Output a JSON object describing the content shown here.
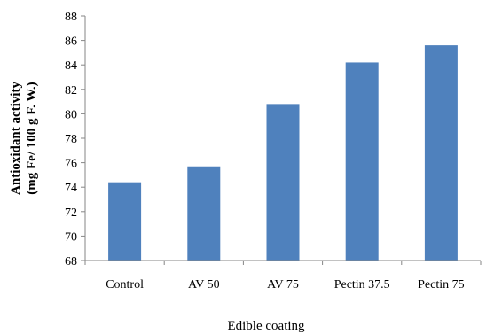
{
  "chart_data": {
    "type": "bar",
    "categories": [
      "Control",
      "AV 50",
      "AV 75",
      "Pectin 37.5",
      "Pectin 75"
    ],
    "values": [
      74.4,
      75.7,
      80.8,
      84.2,
      85.6
    ],
    "title": "",
    "xlabel": "Edible coating",
    "ylabel_lines": [
      "Antioxidant activity",
      "(mg Fe/ 100 g F. W.)"
    ],
    "ylim": [
      68,
      88
    ],
    "yticks": [
      "68",
      "70",
      "72",
      "74",
      "76",
      "78",
      "80",
      "82",
      "84",
      "86",
      "88"
    ],
    "grid": false,
    "legend": "none",
    "bar_color": "#4F81BD"
  }
}
